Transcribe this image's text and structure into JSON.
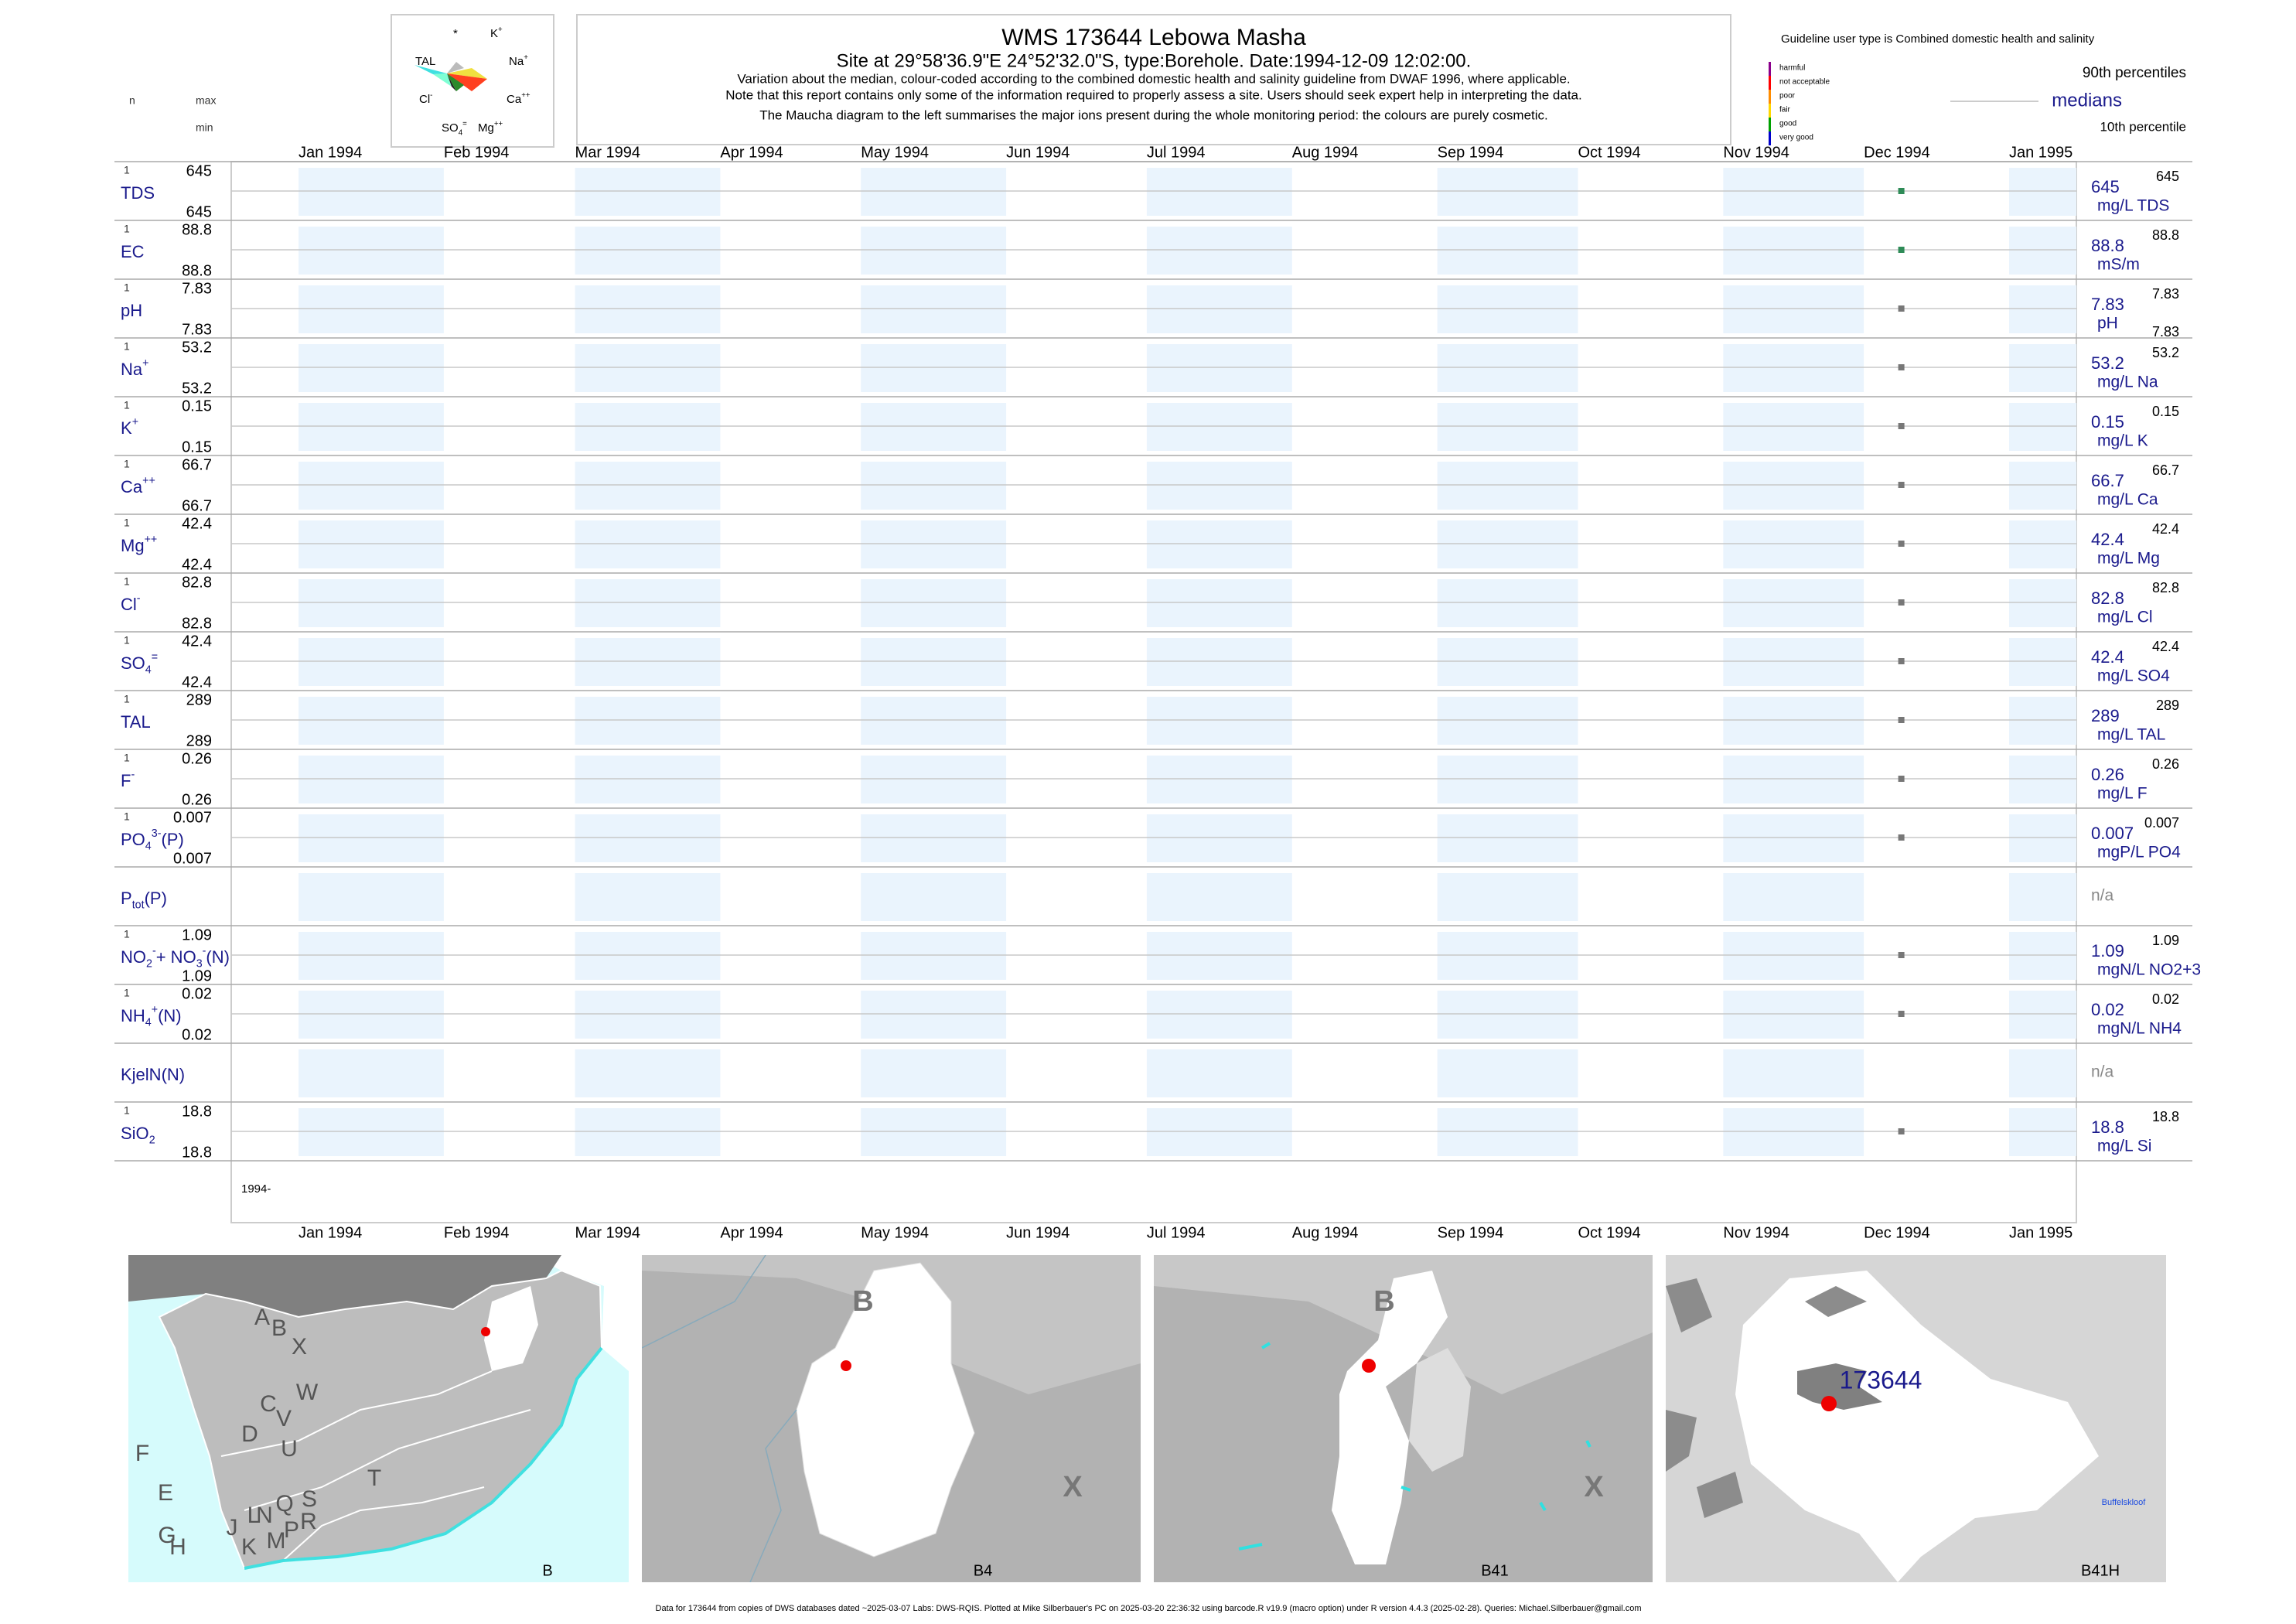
{
  "header": {
    "title": "WMS 173644  Lebowa Masha",
    "subtitle": "Site at 29°58'36.9\"E 24°52'32.0\"S, type:Borehole. Date:1994-12-09 12:02:00.",
    "notes": [
      "Variation about the median,  colour-coded according to the combined domestic health and salinity guideline from DWAF 1996, where applicable.",
      "Note that this report contains only some of the information required to properly assess a site. Users should seek expert help in interpreting the data.",
      "The Maucha diagram to the left summarises the major ions present during the whole monitoring period: the colours are purely cosmetic."
    ],
    "maucha": [
      [
        {
          "text": "*"
        }
      ],
      [
        {
          "text": "K"
        },
        {
          "text": "+",
          "pos": "sup"
        }
      ],
      [
        {
          "text": "TAL"
        }
      ],
      [
        {
          "text": "Na"
        },
        {
          "text": "+",
          "pos": "sup"
        }
      ],
      [
        {
          "text": "Cl"
        },
        {
          "text": "-",
          "pos": "sup"
        }
      ],
      [
        {
          "text": "Ca"
        },
        {
          "text": "++",
          "pos": "sup"
        }
      ],
      [
        {
          "text": "SO"
        },
        {
          "text": "4",
          "pos": "sub"
        },
        {
          "text": "=",
          "pos": "sup"
        }
      ],
      [
        {
          "text": "Mg"
        },
        {
          "text": "++",
          "pos": "sup"
        }
      ]
    ]
  },
  "legend": {
    "guideline": "Guideline user type is Combined domestic health and salinity",
    "classes": [
      "harmful",
      "not acceptable",
      "poor",
      "fair",
      "good",
      "very good"
    ],
    "p90": "90th percentiles",
    "median": "medians",
    "p10": "10th percentile"
  },
  "table": {
    "columns": {
      "n": "n",
      "max": "max",
      "min": "min"
    },
    "rows": [
      {
        "label": [
          {
            "text": "TDS"
          }
        ],
        "n": 1,
        "max": 645,
        "min": 645,
        "median": 645,
        "unit": "mg/L TDS",
        "p90": 645
      },
      {
        "label": [
          {
            "text": "EC"
          }
        ],
        "n": 1,
        "max": 88.8,
        "min": 88.8,
        "median": 88.8,
        "unit": "mS/m",
        "p90": 88.8
      },
      {
        "label": [
          {
            "text": "pH"
          }
        ],
        "n": 1,
        "max": 7.83,
        "min": 7.83,
        "median": 7.83,
        "unit": "pH",
        "p90": 7.83,
        "p10": 7.83
      },
      {
        "label": [
          {
            "text": "Na"
          },
          {
            "text": "+",
            "pos": "sup"
          }
        ],
        "n": 1,
        "max": 53.2,
        "min": 53.2,
        "median": 53.2,
        "unit": "mg/L Na",
        "p90": 53.2
      },
      {
        "label": [
          {
            "text": "K"
          },
          {
            "text": "+",
            "pos": "sup"
          }
        ],
        "n": 1,
        "max": 0.15,
        "min": 0.15,
        "median": 0.15,
        "unit": "mg/L K",
        "p90": 0.15
      },
      {
        "label": [
          {
            "text": "Ca"
          },
          {
            "text": "++",
            "pos": "sup"
          }
        ],
        "n": 1,
        "max": 66.7,
        "min": 66.7,
        "median": 66.7,
        "unit": "mg/L Ca",
        "p90": 66.7
      },
      {
        "label": [
          {
            "text": "Mg"
          },
          {
            "text": "++",
            "pos": "sup"
          }
        ],
        "n": 1,
        "max": 42.4,
        "min": 42.4,
        "median": 42.4,
        "unit": "mg/L Mg",
        "p90": 42.4
      },
      {
        "label": [
          {
            "text": "Cl"
          },
          {
            "text": "-",
            "pos": "sup"
          }
        ],
        "n": 1,
        "max": 82.8,
        "min": 82.8,
        "median": 82.8,
        "unit": "mg/L Cl",
        "p90": 82.8
      },
      {
        "label": [
          {
            "text": "SO"
          },
          {
            "text": "4",
            "pos": "sub"
          },
          {
            "text": "=",
            "pos": "sup"
          }
        ],
        "n": 1,
        "max": 42.4,
        "min": 42.4,
        "median": 42.4,
        "unit": "mg/L SO4",
        "p90": 42.4
      },
      {
        "label": [
          {
            "text": "TAL"
          }
        ],
        "n": 1,
        "max": 289,
        "min": 289,
        "median": 289,
        "unit": "mg/L TAL",
        "p90": 289
      },
      {
        "label": [
          {
            "text": "F"
          },
          {
            "text": "-",
            "pos": "sup"
          }
        ],
        "n": 1,
        "max": 0.26,
        "min": 0.26,
        "median": 0.26,
        "unit": "mg/L F",
        "p90": 0.26
      },
      {
        "label": [
          {
            "text": "PO"
          },
          {
            "text": "4",
            "pos": "sub"
          },
          {
            "text": "3-",
            "pos": "sup"
          },
          {
            "text": "(P)"
          }
        ],
        "n": 1,
        "max": 0.007,
        "min": 0.007,
        "median": 0.007,
        "unit": "mgP/L PO4",
        "p90": 0.007
      },
      {
        "label": [
          {
            "text": "P"
          },
          {
            "text": "tot",
            "pos": "sub"
          },
          {
            "text": "(P)"
          }
        ],
        "median": "n/a"
      },
      {
        "label": [
          {
            "text": "NO"
          },
          {
            "text": "2",
            "pos": "sub"
          },
          {
            "text": "-",
            "pos": "sup"
          },
          {
            "text": "+ NO"
          },
          {
            "text": "3",
            "pos": "sub"
          },
          {
            "text": "-",
            "pos": "sup"
          },
          {
            "text": "(N)"
          }
        ],
        "n": 1,
        "max": 1.09,
        "min": 1.09,
        "median": 1.09,
        "unit": "mgN/L NO2+3",
        "p90": 1.09
      },
      {
        "label": [
          {
            "text": "NH"
          },
          {
            "text": "4",
            "pos": "sub"
          },
          {
            "text": "+",
            "pos": "sup"
          },
          {
            "text": "(N)"
          }
        ],
        "n": 1,
        "max": 0.02,
        "min": 0.02,
        "median": 0.02,
        "unit": "mgN/L NH4",
        "p90": 0.02
      },
      {
        "label": [
          {
            "text": "KjelN(N)"
          }
        ],
        "median": "n/a"
      },
      {
        "label": [
          {
            "text": "SiO"
          },
          {
            "text": "2",
            "pos": "sub"
          }
        ],
        "n": 1,
        "max": 18.8,
        "min": 18.8,
        "median": 18.8,
        "unit": "mg/L Si",
        "p90": 18.8
      }
    ]
  },
  "timeline": {
    "months": [
      "Jan 1994",
      "Feb 1994",
      "Mar 1994",
      "Apr 1994",
      "May 1994",
      "Jun 1994",
      "Jul 1994",
      "Aug 1994",
      "Sep 1994",
      "Oct 1994",
      "Nov 1994",
      "Dec 1994",
      "Jan 1995"
    ],
    "sample_date": "1994-12-09",
    "start_label": "1994-"
  },
  "maps": [
    {
      "caption": "B",
      "labels": [
        "A",
        "B",
        "X",
        "W",
        "C",
        "V",
        "U",
        "D",
        "T",
        "F",
        "E",
        "S",
        "R",
        "Q",
        "N",
        "L",
        "P",
        "M",
        "J",
        "G",
        "H",
        "K"
      ]
    },
    {
      "caption": "B4",
      "labels": [
        "B",
        "X"
      ]
    },
    {
      "caption": "B41",
      "labels": [
        "B",
        "X"
      ]
    },
    {
      "caption": "B41H",
      "labels": [
        "173644",
        "Buffelskloof"
      ]
    }
  ],
  "footer": "Data for 173644 from copies of DWS databases dated ~2025-03-07 Labs: DWS-RQIS. Plotted at Mike Silberbauer's PC on 2025-03-20 22:36:32 using barcode.R v19.9 (macro option) under R version 4.4.3 (2025-02-28). Queries: Michael.Silberbauer@gmail.com"
}
